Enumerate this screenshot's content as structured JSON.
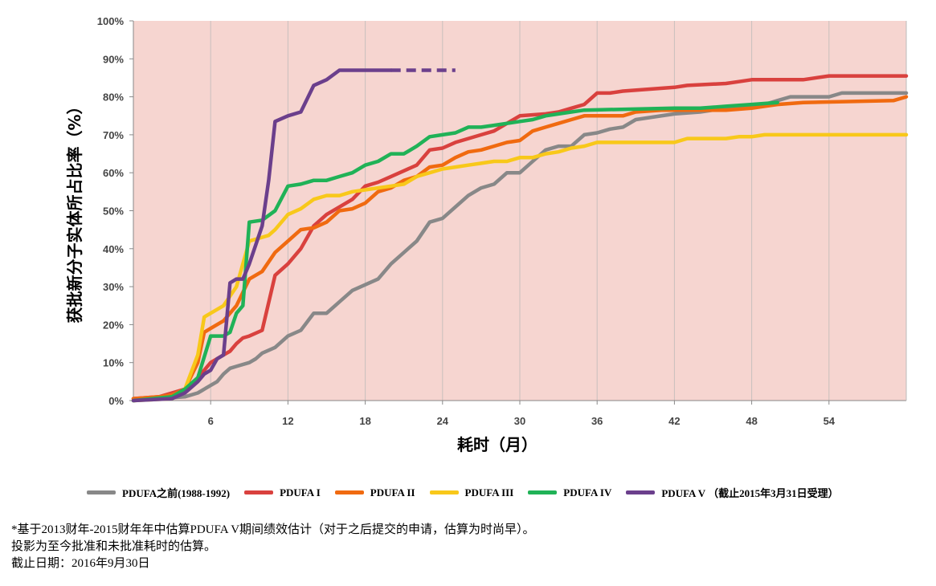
{
  "chart_data": {
    "type": "line",
    "title": "",
    "xlabel": "耗时（月）",
    "ylabel": "获批新分子实体所占比率（%）",
    "xlim": [
      0,
      60
    ],
    "ylim": [
      0,
      100
    ],
    "x_ticks": [
      6,
      12,
      18,
      24,
      30,
      36,
      42,
      48,
      54
    ],
    "y_ticks": [
      "0%",
      "10%",
      "20%",
      "30%",
      "40%",
      "50%",
      "60%",
      "70%",
      "80%",
      "90%",
      "100%"
    ],
    "grid": "vertical",
    "background_color": "#f6d5d0",
    "legend_position": "bottom",
    "series": [
      {
        "name": "PDUFA之前(1988-1992)",
        "color": "#888888",
        "points": [
          [
            0,
            0
          ],
          [
            4,
            1
          ],
          [
            5,
            2
          ],
          [
            6,
            4
          ],
          [
            6.5,
            5
          ],
          [
            7,
            7
          ],
          [
            7.5,
            8.5
          ],
          [
            8,
            9
          ],
          [
            9,
            10
          ],
          [
            9.5,
            11
          ],
          [
            10,
            12.5
          ],
          [
            11,
            14
          ],
          [
            12,
            17
          ],
          [
            13,
            18.5
          ],
          [
            14,
            23
          ],
          [
            15,
            23
          ],
          [
            16,
            26
          ],
          [
            17,
            29
          ],
          [
            18,
            30.5
          ],
          [
            19,
            32
          ],
          [
            20,
            36
          ],
          [
            21,
            39
          ],
          [
            22,
            42
          ],
          [
            23,
            47
          ],
          [
            24,
            48
          ],
          [
            25,
            51
          ],
          [
            26,
            54
          ],
          [
            27,
            56
          ],
          [
            28,
            57
          ],
          [
            29,
            60
          ],
          [
            30,
            60
          ],
          [
            31,
            63
          ],
          [
            32,
            66
          ],
          [
            33,
            67
          ],
          [
            34,
            67
          ],
          [
            35,
            70
          ],
          [
            36,
            70.5
          ],
          [
            37,
            71.5
          ],
          [
            38,
            72
          ],
          [
            39,
            74
          ],
          [
            40,
            74.5
          ],
          [
            42,
            75.5
          ],
          [
            44,
            76
          ],
          [
            46,
            77
          ],
          [
            48,
            77.5
          ],
          [
            49,
            78
          ],
          [
            50,
            79
          ],
          [
            51,
            80
          ],
          [
            54,
            80
          ],
          [
            55,
            81
          ],
          [
            60,
            81
          ]
        ]
      },
      {
        "name": "PDUFA I",
        "color": "#d9413e",
        "points": [
          [
            0,
            0.5
          ],
          [
            2,
            1
          ],
          [
            3,
            2
          ],
          [
            4,
            3
          ],
          [
            5,
            6
          ],
          [
            6,
            10
          ],
          [
            7,
            12
          ],
          [
            7.5,
            13
          ],
          [
            8,
            15
          ],
          [
            8.5,
            16.5
          ],
          [
            9,
            17
          ],
          [
            10,
            18.5
          ],
          [
            11,
            33
          ],
          [
            12,
            36
          ],
          [
            13,
            40
          ],
          [
            14,
            46
          ],
          [
            15,
            49
          ],
          [
            16,
            51
          ],
          [
            17,
            53
          ],
          [
            18,
            56.5
          ],
          [
            19,
            57.5
          ],
          [
            20,
            59
          ],
          [
            21,
            60.5
          ],
          [
            22,
            62
          ],
          [
            23,
            66
          ],
          [
            24,
            66.5
          ],
          [
            25,
            68
          ],
          [
            26,
            69
          ],
          [
            27,
            70
          ],
          [
            28,
            71
          ],
          [
            29,
            73
          ],
          [
            30,
            75
          ],
          [
            32,
            75.5
          ],
          [
            33,
            76
          ],
          [
            34,
            77
          ],
          [
            35,
            78
          ],
          [
            36,
            81
          ],
          [
            37,
            81
          ],
          [
            38,
            81.5
          ],
          [
            40,
            82
          ],
          [
            42,
            82.5
          ],
          [
            43,
            83
          ],
          [
            46,
            83.5
          ],
          [
            47,
            84
          ],
          [
            48,
            84.5
          ],
          [
            52,
            84.5
          ],
          [
            54,
            85.5
          ],
          [
            60,
            85.5
          ]
        ]
      },
      {
        "name": "PDUFA II",
        "color": "#f06a10",
        "points": [
          [
            0,
            0.5
          ],
          [
            2,
            1
          ],
          [
            3,
            1.5
          ],
          [
            4,
            3
          ],
          [
            5,
            10
          ],
          [
            5.5,
            18
          ],
          [
            6,
            19
          ],
          [
            7,
            21
          ],
          [
            8,
            25
          ],
          [
            9,
            32
          ],
          [
            10,
            34
          ],
          [
            11,
            39
          ],
          [
            12,
            42
          ],
          [
            13,
            45
          ],
          [
            14,
            45.5
          ],
          [
            15,
            47
          ],
          [
            16,
            50
          ],
          [
            17,
            50.5
          ],
          [
            18,
            52
          ],
          [
            19,
            55
          ],
          [
            20,
            56
          ],
          [
            21,
            58
          ],
          [
            22,
            59
          ],
          [
            23,
            61.5
          ],
          [
            24,
            62
          ],
          [
            25,
            64
          ],
          [
            26,
            65.5
          ],
          [
            27,
            66
          ],
          [
            28,
            67
          ],
          [
            29,
            68
          ],
          [
            30,
            68.5
          ],
          [
            31,
            71
          ],
          [
            32,
            72
          ],
          [
            33,
            73
          ],
          [
            34,
            74
          ],
          [
            35,
            75
          ],
          [
            38,
            75
          ],
          [
            39,
            76
          ],
          [
            41,
            76.5
          ],
          [
            42,
            76.5
          ],
          [
            44,
            76.5
          ],
          [
            46,
            76.5
          ],
          [
            48,
            77
          ],
          [
            49,
            77.5
          ],
          [
            50,
            78
          ],
          [
            52,
            78.5
          ],
          [
            59,
            79
          ],
          [
            60,
            80
          ]
        ]
      },
      {
        "name": "PDUFA III",
        "color": "#f8c81a",
        "points": [
          [
            0,
            0
          ],
          [
            3,
            0.5
          ],
          [
            4,
            3
          ],
          [
            5,
            12
          ],
          [
            5.5,
            22
          ],
          [
            6,
            23
          ],
          [
            7,
            25
          ],
          [
            8,
            30
          ],
          [
            9,
            42
          ],
          [
            10,
            43
          ],
          [
            10.5,
            43.5
          ],
          [
            11,
            45
          ],
          [
            12,
            49
          ],
          [
            13,
            50.5
          ],
          [
            14,
            53
          ],
          [
            15,
            54
          ],
          [
            16,
            54
          ],
          [
            17,
            55
          ],
          [
            18,
            55.5
          ],
          [
            19,
            56
          ],
          [
            20,
            56.5
          ],
          [
            21,
            57
          ],
          [
            22,
            59
          ],
          [
            23,
            60
          ],
          [
            24,
            61
          ],
          [
            25,
            61.5
          ],
          [
            26,
            62
          ],
          [
            27,
            62.5
          ],
          [
            28,
            63
          ],
          [
            29,
            63
          ],
          [
            30,
            64
          ],
          [
            31,
            64
          ],
          [
            32,
            65
          ],
          [
            33,
            65.5
          ],
          [
            34,
            66.5
          ],
          [
            35,
            67
          ],
          [
            36,
            68
          ],
          [
            42,
            68
          ],
          [
            43,
            69
          ],
          [
            46,
            69
          ],
          [
            47,
            69.5
          ],
          [
            48,
            69.5
          ],
          [
            49,
            70
          ],
          [
            60,
            70
          ]
        ]
      },
      {
        "name": "PDUFA IV",
        "color": "#20b257",
        "points": [
          [
            0,
            0
          ],
          [
            3,
            1
          ],
          [
            4,
            3
          ],
          [
            5,
            6
          ],
          [
            6,
            17
          ],
          [
            7,
            17
          ],
          [
            7.5,
            18
          ],
          [
            8,
            23
          ],
          [
            8.5,
            25
          ],
          [
            9,
            47
          ],
          [
            10,
            47.5
          ],
          [
            11,
            50
          ],
          [
            12,
            56.5
          ],
          [
            13,
            57
          ],
          [
            14,
            58
          ],
          [
            15,
            58
          ],
          [
            16,
            59
          ],
          [
            17,
            60
          ],
          [
            18,
            62
          ],
          [
            19,
            63
          ],
          [
            20,
            65
          ],
          [
            21,
            65
          ],
          [
            22,
            67
          ],
          [
            23,
            69.5
          ],
          [
            24,
            70
          ],
          [
            25,
            70.5
          ],
          [
            26,
            72
          ],
          [
            27,
            72
          ],
          [
            28,
            72.5
          ],
          [
            29,
            73
          ],
          [
            30,
            73.5
          ],
          [
            31,
            74
          ],
          [
            32,
            75
          ],
          [
            33,
            75.5
          ],
          [
            34,
            76
          ],
          [
            35,
            76.5
          ],
          [
            42,
            77
          ],
          [
            44,
            77
          ],
          [
            46,
            77.5
          ],
          [
            48,
            78
          ],
          [
            50,
            78.5
          ]
        ]
      },
      {
        "name": "PDUFA V （截止2015年3月31日受理）",
        "color": "#6b3f8c",
        "points": [
          [
            0,
            0
          ],
          [
            3,
            0.5
          ],
          [
            4,
            2
          ],
          [
            5,
            5
          ],
          [
            5.5,
            7
          ],
          [
            6,
            8
          ],
          [
            6.5,
            11
          ],
          [
            7,
            12
          ],
          [
            7.5,
            31
          ],
          [
            8,
            32
          ],
          [
            8.5,
            32
          ],
          [
            9,
            36
          ],
          [
            9.5,
            41
          ],
          [
            10,
            46
          ],
          [
            10.5,
            58
          ],
          [
            11,
            73.5
          ],
          [
            12,
            75
          ],
          [
            13,
            76
          ],
          [
            14,
            83
          ],
          [
            15,
            84.5
          ],
          [
            16,
            87
          ],
          [
            17,
            87
          ],
          [
            18,
            87
          ],
          [
            19,
            87
          ],
          [
            20,
            87
          ]
        ],
        "projection": [
          [
            20,
            87
          ],
          [
            25,
            87
          ]
        ]
      }
    ]
  },
  "notes": [
    "*基于2013财年-2015财年年中估算PDUFA V期间绩效估计（对于之后提交的申请，估算为时尚早）。",
    "投影为至今批准和未批准耗时的估算。",
    "截止日期：2016年9月30日"
  ]
}
